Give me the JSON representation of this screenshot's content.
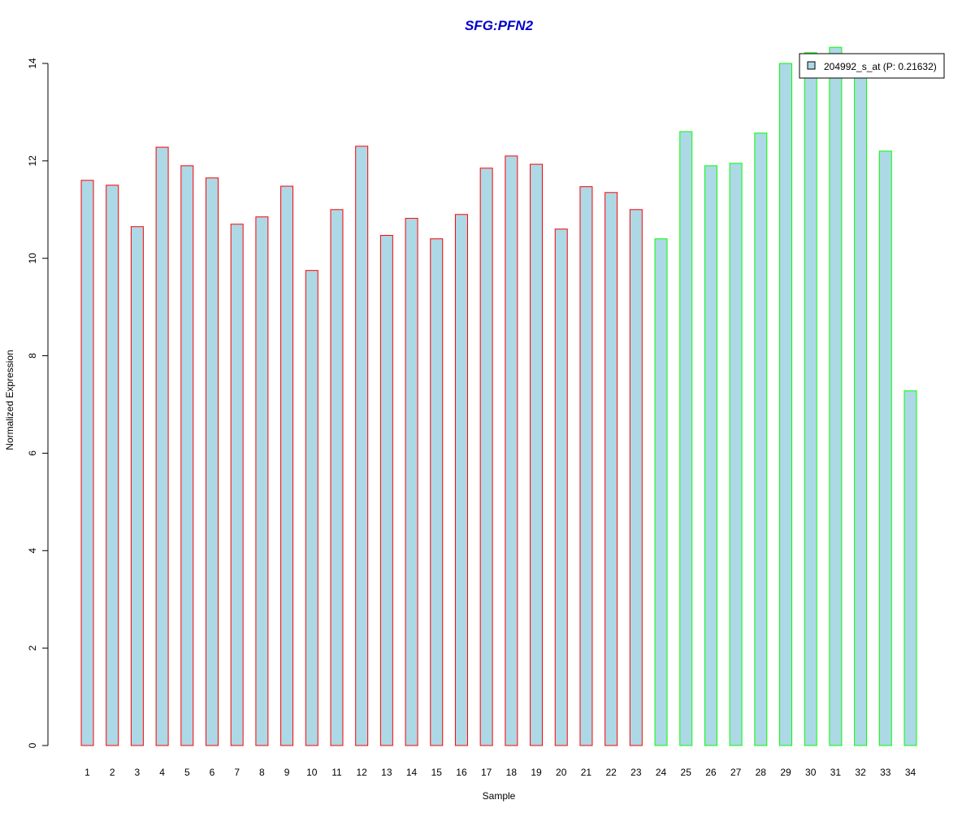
{
  "chart_data": {
    "type": "bar",
    "title": "SFG:PFN2",
    "xlabel": "Sample",
    "ylabel": "Normalized Expression",
    "ylim": [
      0,
      14
    ],
    "yticks": [
      0,
      2,
      4,
      6,
      8,
      10,
      12,
      14
    ],
    "categories": [
      "1",
      "2",
      "3",
      "4",
      "5",
      "6",
      "7",
      "8",
      "9",
      "10",
      "11",
      "12",
      "13",
      "14",
      "15",
      "16",
      "17",
      "18",
      "19",
      "20",
      "21",
      "22",
      "23",
      "24",
      "25",
      "26",
      "27",
      "28",
      "29",
      "30",
      "31",
      "32",
      "33",
      "34"
    ],
    "values": [
      11.6,
      11.5,
      10.65,
      12.28,
      11.9,
      11.65,
      10.7,
      10.85,
      11.48,
      9.75,
      11.0,
      12.3,
      10.47,
      10.82,
      10.4,
      10.9,
      11.85,
      12.1,
      11.93,
      10.6,
      11.47,
      11.35,
      11.0,
      10.4,
      12.6,
      11.9,
      11.95,
      12.57,
      14.0,
      14.22,
      14.33,
      13.78,
      12.2,
      7.28
    ],
    "groups": [
      "red",
      "red",
      "red",
      "red",
      "red",
      "red",
      "red",
      "red",
      "red",
      "red",
      "red",
      "red",
      "red",
      "red",
      "red",
      "red",
      "red",
      "red",
      "red",
      "red",
      "red",
      "red",
      "red",
      "green",
      "green",
      "green",
      "green",
      "green",
      "green",
      "green",
      "green",
      "green",
      "green",
      "green"
    ],
    "series": [
      {
        "name": "204992_s_at (P: 0.21632)",
        "values": [
          11.6,
          11.5,
          10.65,
          12.28,
          11.9,
          11.65,
          10.7,
          10.85,
          11.48,
          9.75,
          11.0,
          12.3,
          10.47,
          10.82,
          10.4,
          10.9,
          11.85,
          12.1,
          11.93,
          10.6,
          11.47,
          11.35,
          11.0,
          10.4,
          12.6,
          11.9,
          11.95,
          12.57,
          14.0,
          14.22,
          14.33,
          13.78,
          12.2,
          7.28
        ]
      }
    ],
    "grid": false,
    "legend_position": "top-right",
    "colors": {
      "bar_fill": "#add8e6",
      "border_group_1": "#ff0000",
      "border_group_2": "#00ff00",
      "title": "#0000cd"
    }
  }
}
